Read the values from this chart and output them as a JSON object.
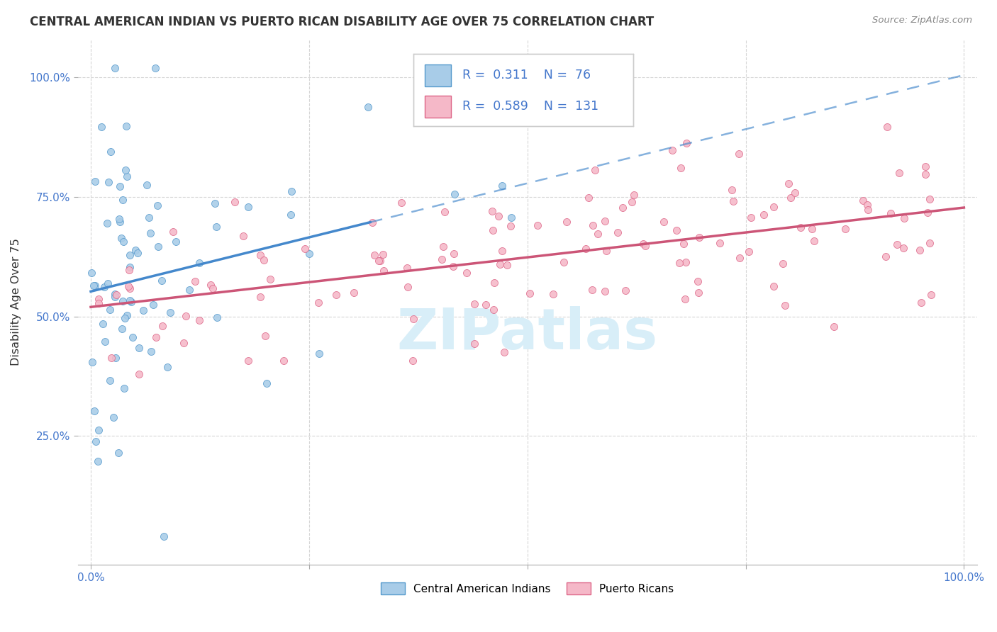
{
  "title": "CENTRAL AMERICAN INDIAN VS PUERTO RICAN DISABILITY AGE OVER 75 CORRELATION CHART",
  "source": "Source: ZipAtlas.com",
  "ylabel": "Disability Age Over 75",
  "legend_label1": "Central American Indians",
  "legend_label2": "Puerto Ricans",
  "R1": 0.311,
  "N1": 76,
  "R2": 0.589,
  "N2": 131,
  "color_blue_fill": "#a8cce8",
  "color_blue_edge": "#5599cc",
  "color_blue_line": "#4488cc",
  "color_pink_fill": "#f5b8c8",
  "color_pink_edge": "#dd6688",
  "color_pink_line": "#cc5577",
  "color_text_blue": "#4477cc",
  "color_title": "#333333",
  "color_source": "#888888",
  "color_grid": "#cccccc",
  "background_color": "#ffffff",
  "watermark_color": "#d8eef8",
  "seed": 7
}
